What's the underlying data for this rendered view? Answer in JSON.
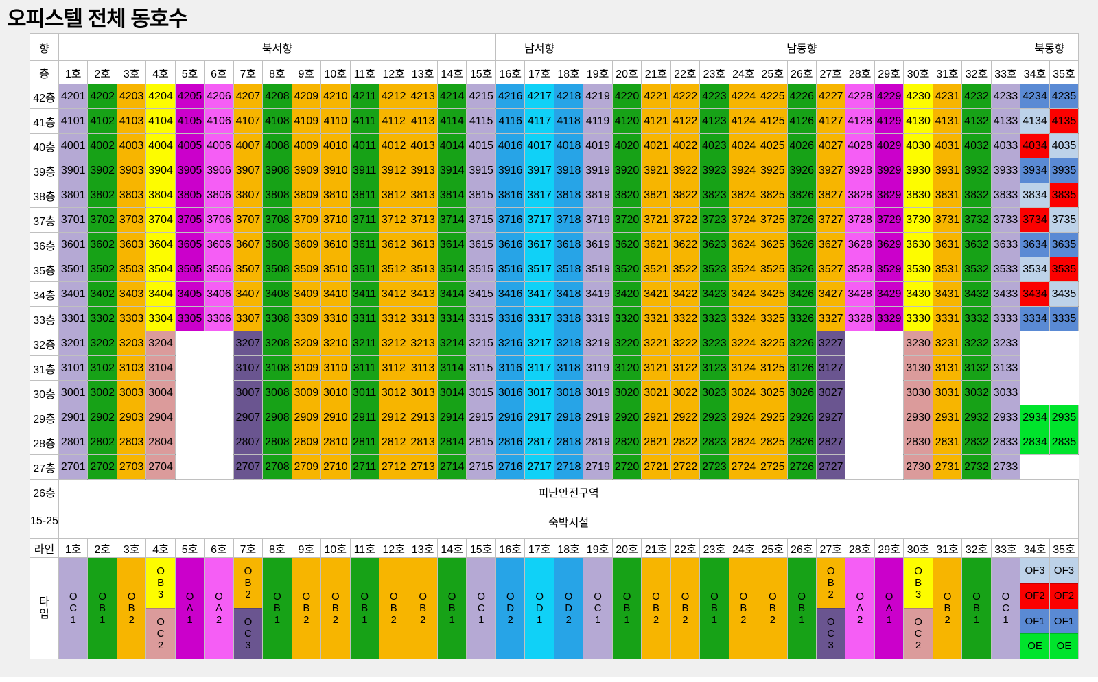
{
  "title": "오피스텔 전체 동호수",
  "header": {
    "direction_label": "향",
    "floor_label": "층",
    "line_label": "라인",
    "type_label": "타입",
    "directions": [
      {
        "label": "북서향",
        "span": 15
      },
      {
        "label": "남서향",
        "span": 3
      },
      {
        "label": "남동향",
        "span": 15
      },
      {
        "label": "북동향",
        "span": 2
      }
    ],
    "units": [
      "1호",
      "2호",
      "3호",
      "4호",
      "5호",
      "6호",
      "7호",
      "8호",
      "9호",
      "10호",
      "11호",
      "12호",
      "13호",
      "14호",
      "15호",
      "16호",
      "17호",
      "18호",
      "19호",
      "20호",
      "21호",
      "22호",
      "23호",
      "24호",
      "25호",
      "26호",
      "27호",
      "28호",
      "29호",
      "30호",
      "31호",
      "32호",
      "33호",
      "34호",
      "35호"
    ]
  },
  "special_rows": [
    {
      "label": "26층",
      "text": "피난안전구역"
    },
    {
      "label": "15-25층",
      "text": "숙박시설"
    }
  ],
  "type_colors": {
    "OC1": "#b5a9d4",
    "OB1": "#17a217",
    "OB2": "#f7b500",
    "OB3": "#fdfc00",
    "OA1": "#cb00cb",
    "OA2": "#f55ef5",
    "OC2": "#db9b9b",
    "OC3": "#6a5590",
    "OD1": "#10d1f7",
    "OD2": "#27a4e7",
    "OF1": "#5a8ad4",
    "OF2": "#fb0100",
    "OF3": "#bdd2e9",
    "OE": "#00e42c"
  },
  "column_types": {
    "upper": [
      "OC1",
      "OB1",
      "OB2",
      "OB3",
      "OA1",
      "OA2",
      "OB2",
      "OB1",
      "OB2",
      "OB2",
      "OB1",
      "OB2",
      "OB2",
      "OB1",
      "OC1",
      "OD2",
      "OD1",
      "OD2",
      "OC1",
      "OB1",
      "OB2",
      "OB2",
      "OB1",
      "OB2",
      "OB2",
      "OB1",
      "OB2",
      "OA2",
      "OA1",
      "OB3",
      "OB2",
      "OB1",
      "OC1"
    ],
    "lower": [
      "OC1",
      "OB1",
      "OB2",
      "OC2",
      null,
      null,
      "OC3",
      "OB1",
      "OB2",
      "OB2",
      "OB1",
      "OB2",
      "OB2",
      "OB1",
      "OC1",
      "OD2",
      "OD1",
      "OD2",
      "OC1",
      "OB1",
      "OB2",
      "OB2",
      "OB1",
      "OB2",
      "OB2",
      "OB1",
      "OC3",
      null,
      null,
      "OC2",
      "OB2",
      "OB1",
      "OC1"
    ]
  },
  "floors": [
    {
      "label": "42층",
      "band": "upper",
      "end_types": [
        "OF1",
        "OF1"
      ],
      "values": [
        "4201",
        "4202",
        "4203",
        "4204",
        "4205",
        "4206",
        "4207",
        "4208",
        "4209",
        "4210",
        "4211",
        "4212",
        "4213",
        "4214",
        "4215",
        "4216",
        "4217",
        "4218",
        "4219",
        "4220",
        "4221",
        "4222",
        "4223",
        "4224",
        "4225",
        "4226",
        "4227",
        "4228",
        "4229",
        "4230",
        "4231",
        "4232",
        "4233",
        "4234",
        "4235"
      ]
    },
    {
      "label": "41층",
      "band": "upper",
      "end_types": [
        "OF3",
        "OF2"
      ],
      "values": [
        "4101",
        "4102",
        "4103",
        "4104",
        "4105",
        "4106",
        "4107",
        "4108",
        "4109",
        "4110",
        "4111",
        "4112",
        "4113",
        "4114",
        "4115",
        "4116",
        "4117",
        "4118",
        "4119",
        "4120",
        "4121",
        "4122",
        "4123",
        "4124",
        "4125",
        "4126",
        "4127",
        "4128",
        "4129",
        "4130",
        "4131",
        "4132",
        "4133",
        "4134",
        "4135"
      ]
    },
    {
      "label": "40층",
      "band": "upper",
      "end_types": [
        "OF2",
        "OF3"
      ],
      "values": [
        "4001",
        "4002",
        "4003",
        "4004",
        "4005",
        "4006",
        "4007",
        "4008",
        "4009",
        "4010",
        "4011",
        "4012",
        "4013",
        "4014",
        "4015",
        "4016",
        "4017",
        "4018",
        "4019",
        "4020",
        "4021",
        "4022",
        "4023",
        "4024",
        "4025",
        "4026",
        "4027",
        "4028",
        "4029",
        "4030",
        "4031",
        "4032",
        "4033",
        "4034",
        "4035"
      ]
    },
    {
      "label": "39층",
      "band": "upper",
      "end_types": [
        "OF1",
        "OF1"
      ],
      "values": [
        "3901",
        "3902",
        "3903",
        "3904",
        "3905",
        "3906",
        "3907",
        "3908",
        "3909",
        "3910",
        "3911",
        "3912",
        "3913",
        "3914",
        "3915",
        "3916",
        "3917",
        "3918",
        "3919",
        "3920",
        "3921",
        "3922",
        "3923",
        "3924",
        "3925",
        "3926",
        "3927",
        "3928",
        "3929",
        "3930",
        "3931",
        "3932",
        "3933",
        "3934",
        "3935"
      ]
    },
    {
      "label": "38층",
      "band": "upper",
      "end_types": [
        "OF3",
        "OF2"
      ],
      "values": [
        "3801",
        "3802",
        "3803",
        "3804",
        "3805",
        "3806",
        "3807",
        "3808",
        "3809",
        "3810",
        "3811",
        "3812",
        "3813",
        "3814",
        "3815",
        "3816",
        "3817",
        "3818",
        "3819",
        "3820",
        "3821",
        "3822",
        "3823",
        "3824",
        "3825",
        "3826",
        "3827",
        "3828",
        "3829",
        "3830",
        "3831",
        "3832",
        "3833",
        "3834",
        "3835"
      ]
    },
    {
      "label": "37층",
      "band": "upper",
      "end_types": [
        "OF2",
        "OF3"
      ],
      "values": [
        "3701",
        "3702",
        "3703",
        "3704",
        "3705",
        "3706",
        "3707",
        "3708",
        "3709",
        "3710",
        "3711",
        "3712",
        "3713",
        "3714",
        "3715",
        "3716",
        "3717",
        "3718",
        "3719",
        "3720",
        "3721",
        "3722",
        "3723",
        "3724",
        "3725",
        "3726",
        "3727",
        "3728",
        "3729",
        "3730",
        "3731",
        "3732",
        "3733",
        "3734",
        "3735"
      ]
    },
    {
      "label": "36층",
      "band": "upper",
      "end_types": [
        "OF1",
        "OF1"
      ],
      "values": [
        "3601",
        "3602",
        "3603",
        "3604",
        "3605",
        "3606",
        "3607",
        "3608",
        "3609",
        "3610",
        "3611",
        "3612",
        "3613",
        "3614",
        "3615",
        "3616",
        "3617",
        "3618",
        "3619",
        "3620",
        "3621",
        "3622",
        "3623",
        "3624",
        "3625",
        "3626",
        "3627",
        "3628",
        "3629",
        "3630",
        "3631",
        "3632",
        "3633",
        "3634",
        "3635"
      ]
    },
    {
      "label": "35층",
      "band": "upper",
      "end_types": [
        "OF3",
        "OF2"
      ],
      "values": [
        "3501",
        "3502",
        "3503",
        "3504",
        "3505",
        "3506",
        "3507",
        "3508",
        "3509",
        "3510",
        "3511",
        "3512",
        "3513",
        "3514",
        "3515",
        "3516",
        "3517",
        "3518",
        "3519",
        "3520",
        "3521",
        "3522",
        "3523",
        "3524",
        "3525",
        "3526",
        "3527",
        "3528",
        "3529",
        "3530",
        "3531",
        "3532",
        "3533",
        "3534",
        "3535"
      ]
    },
    {
      "label": "34층",
      "band": "upper",
      "end_types": [
        "OF2",
        "OF3"
      ],
      "values": [
        "3401",
        "3402",
        "3403",
        "3404",
        "3405",
        "3406",
        "3407",
        "3408",
        "3409",
        "3410",
        "3411",
        "3412",
        "3413",
        "3414",
        "3415",
        "3416",
        "3417",
        "3418",
        "3419",
        "3420",
        "3421",
        "3422",
        "3423",
        "3424",
        "3425",
        "3426",
        "3427",
        "3428",
        "3429",
        "3430",
        "3431",
        "3432",
        "3433",
        "3434",
        "3435"
      ]
    },
    {
      "label": "33층",
      "band": "upper",
      "end_types": [
        "OF1",
        "OF1"
      ],
      "values": [
        "3301",
        "3302",
        "3303",
        "3304",
        "3305",
        "3306",
        "3307",
        "3308",
        "3309",
        "3310",
        "3311",
        "3312",
        "3313",
        "3314",
        "3315",
        "3316",
        "3317",
        "3318",
        "3319",
        "3320",
        "3321",
        "3322",
        "3323",
        "3324",
        "3325",
        "3326",
        "3327",
        "3328",
        "3329",
        "3330",
        "3331",
        "3332",
        "3333",
        "3334",
        "3335"
      ]
    },
    {
      "label": "32층",
      "band": "lower",
      "end_types": [
        null,
        null
      ],
      "values": [
        "3201",
        "3202",
        "3203",
        "3204",
        null,
        null,
        "3207",
        "3208",
        "3209",
        "3210",
        "3211",
        "3212",
        "3213",
        "3214",
        "3215",
        "3216",
        "3217",
        "3218",
        "3219",
        "3220",
        "3221",
        "3222",
        "3223",
        "3224",
        "3225",
        "3226",
        "3227",
        null,
        null,
        "3230",
        "3231",
        "3232",
        "3233",
        null,
        null
      ]
    },
    {
      "label": "31층",
      "band": "lower",
      "end_types": [
        null,
        null
      ],
      "values": [
        "3101",
        "3102",
        "3103",
        "3104",
        null,
        null,
        "3107",
        "3108",
        "3109",
        "3110",
        "3111",
        "3112",
        "3113",
        "3114",
        "3115",
        "3116",
        "3117",
        "3118",
        "3119",
        "3120",
        "3121",
        "3122",
        "3123",
        "3124",
        "3125",
        "3126",
        "3127",
        null,
        null,
        "3130",
        "3131",
        "3132",
        "3133",
        null,
        null
      ]
    },
    {
      "label": "30층",
      "band": "lower",
      "end_types": [
        null,
        null
      ],
      "values": [
        "3001",
        "3002",
        "3003",
        "3004",
        null,
        null,
        "3007",
        "3008",
        "3009",
        "3010",
        "3011",
        "3012",
        "3013",
        "3014",
        "3015",
        "3016",
        "3017",
        "3018",
        "3019",
        "3020",
        "3021",
        "3022",
        "3023",
        "3024",
        "3025",
        "3026",
        "3027",
        null,
        null,
        "3030",
        "3031",
        "3032",
        "3033",
        null,
        null
      ]
    },
    {
      "label": "29층",
      "band": "lower",
      "end_types": [
        "OE",
        "OE"
      ],
      "values": [
        "2901",
        "2902",
        "2903",
        "2904",
        null,
        null,
        "2907",
        "2908",
        "2909",
        "2910",
        "2911",
        "2912",
        "2913",
        "2914",
        "2915",
        "2916",
        "2917",
        "2918",
        "2919",
        "2920",
        "2921",
        "2922",
        "2923",
        "2924",
        "2925",
        "2926",
        "2927",
        null,
        null,
        "2930",
        "2931",
        "2932",
        "2933",
        "2934",
        "2935"
      ]
    },
    {
      "label": "28층",
      "band": "lower",
      "end_types": [
        "OE",
        "OE"
      ],
      "values": [
        "2801",
        "2802",
        "2803",
        "2804",
        null,
        null,
        "2807",
        "2808",
        "2809",
        "2810",
        "2811",
        "2812",
        "2813",
        "2814",
        "2815",
        "2816",
        "2817",
        "2818",
        "2819",
        "2820",
        "2821",
        "2822",
        "2823",
        "2824",
        "2825",
        "2826",
        "2827",
        null,
        null,
        "2830",
        "2831",
        "2832",
        "2833",
        "2834",
        "2835"
      ]
    },
    {
      "label": "27층",
      "band": "lower",
      "end_types": [
        null,
        null
      ],
      "values": [
        "2701",
        "2702",
        "2703",
        "2704",
        null,
        null,
        "2707",
        "2708",
        "2709",
        "2710",
        "2711",
        "2712",
        "2713",
        "2714",
        "2715",
        "2716",
        "2717",
        "2718",
        "2719",
        "2720",
        "2721",
        "2722",
        "2723",
        "2724",
        "2725",
        "2726",
        "2727",
        null,
        null,
        "2730",
        "2731",
        "2732",
        "2733",
        null,
        null
      ]
    }
  ],
  "type_row": [
    {
      "kind": "single",
      "type": "OC1"
    },
    {
      "kind": "single",
      "type": "OB1"
    },
    {
      "kind": "single",
      "type": "OB2"
    },
    {
      "kind": "split",
      "top": "OB3",
      "bottom": "OC2"
    },
    {
      "kind": "single",
      "type": "OA1"
    },
    {
      "kind": "single",
      "type": "OA2"
    },
    {
      "kind": "split",
      "top": "OB2",
      "bottom": "OC3"
    },
    {
      "kind": "single",
      "type": "OB1"
    },
    {
      "kind": "single",
      "type": "OB2"
    },
    {
      "kind": "single",
      "type": "OB2"
    },
    {
      "kind": "single",
      "type": "OB1"
    },
    {
      "kind": "single",
      "type": "OB2"
    },
    {
      "kind": "single",
      "type": "OB2"
    },
    {
      "kind": "single",
      "type": "OB1"
    },
    {
      "kind": "single",
      "type": "OC1"
    },
    {
      "kind": "single",
      "type": "OD2"
    },
    {
      "kind": "single",
      "type": "OD1"
    },
    {
      "kind": "single",
      "type": "OD2"
    },
    {
      "kind": "single",
      "type": "OC1"
    },
    {
      "kind": "single",
      "type": "OB1"
    },
    {
      "kind": "single",
      "type": "OB2"
    },
    {
      "kind": "single",
      "type": "OB2"
    },
    {
      "kind": "single",
      "type": "OB1"
    },
    {
      "kind": "single",
      "type": "OB2"
    },
    {
      "kind": "single",
      "type": "OB2"
    },
    {
      "kind": "single",
      "type": "OB1"
    },
    {
      "kind": "split",
      "top": "OB2",
      "bottom": "OC3"
    },
    {
      "kind": "single",
      "type": "OA2"
    },
    {
      "kind": "single",
      "type": "OA1"
    },
    {
      "kind": "split",
      "top": "OB3",
      "bottom": "OC2"
    },
    {
      "kind": "single",
      "type": "OB2"
    },
    {
      "kind": "single",
      "type": "OB1"
    },
    {
      "kind": "single",
      "type": "OC1"
    },
    {
      "kind": "quad",
      "types": [
        "OF3",
        "OF2",
        "OF1",
        "OE"
      ]
    },
    {
      "kind": "quad",
      "types": [
        "OF3",
        "OF2",
        "OF1",
        "OE"
      ]
    }
  ]
}
